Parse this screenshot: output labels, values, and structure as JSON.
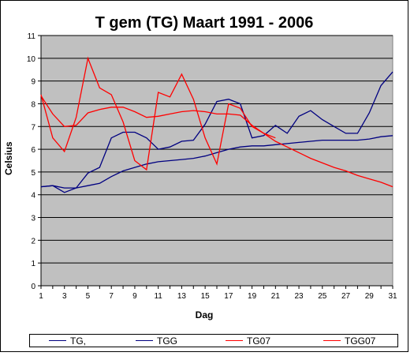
{
  "chart_data": {
    "type": "line",
    "title": "T gem (TG) Maart 1991 - 2006",
    "xlabel": "Dag",
    "ylabel": "Celsius",
    "x": [
      1,
      2,
      3,
      4,
      5,
      6,
      7,
      8,
      9,
      10,
      11,
      12,
      13,
      14,
      15,
      16,
      17,
      18,
      19,
      20,
      21,
      22,
      23,
      24,
      25,
      26,
      27,
      28,
      29,
      30,
      31
    ],
    "x_tick_labels": [
      "1",
      "3",
      "5",
      "7",
      "9",
      "11",
      "13",
      "15",
      "17",
      "19",
      "21",
      "23",
      "25",
      "27",
      "29",
      "31"
    ],
    "ylim": [
      0,
      11
    ],
    "y_ticks": [
      0,
      1,
      2,
      3,
      4,
      5,
      6,
      7,
      8,
      9,
      10,
      11
    ],
    "grid": "horizontal",
    "plot_background": "#c0c0c0",
    "legend_position": "bottom",
    "series": [
      {
        "name": "TG,",
        "color": "#000080",
        "values": [
          4.35,
          4.4,
          4.1,
          4.3,
          4.95,
          5.2,
          6.5,
          6.75,
          6.75,
          6.5,
          6.0,
          6.1,
          6.35,
          6.4,
          7.1,
          8.1,
          8.2,
          8.0,
          6.5,
          6.6,
          7.05,
          6.7,
          7.45,
          7.7,
          7.3,
          7.0,
          6.7,
          6.7,
          7.6,
          8.8,
          9.4
        ]
      },
      {
        "name": "TGG",
        "color": "#000080",
        "values": [
          4.35,
          4.4,
          4.3,
          4.3,
          4.4,
          4.5,
          4.8,
          5.05,
          5.2,
          5.35,
          5.45,
          5.5,
          5.55,
          5.6,
          5.7,
          5.85,
          6.0,
          6.1,
          6.15,
          6.15,
          6.2,
          6.25,
          6.3,
          6.35,
          6.4,
          6.4,
          6.4,
          6.4,
          6.45,
          6.55,
          6.6
        ]
      },
      {
        "name": "TG07",
        "color": "#ff0000",
        "values": [
          8.4,
          6.5,
          5.9,
          7.4,
          10.0,
          8.7,
          8.4,
          7.2,
          5.5,
          5.1,
          8.5,
          8.3,
          9.3,
          8.2,
          6.5,
          5.35,
          8.0,
          7.8,
          7.0,
          6.7,
          6.5,
          null,
          null,
          null,
          null,
          null,
          null,
          null,
          null,
          null,
          null
        ]
      },
      {
        "name": "TGG07",
        "color": "#ff0000",
        "values": [
          8.35,
          7.55,
          7.0,
          7.05,
          7.6,
          7.75,
          7.85,
          7.85,
          7.65,
          7.4,
          7.45,
          7.55,
          7.65,
          7.7,
          7.65,
          7.55,
          7.55,
          7.5,
          7.05,
          6.7,
          6.35,
          6.1,
          5.85,
          5.6,
          5.4,
          5.2,
          5.05,
          4.85,
          4.7,
          4.55,
          4.35
        ]
      }
    ]
  }
}
